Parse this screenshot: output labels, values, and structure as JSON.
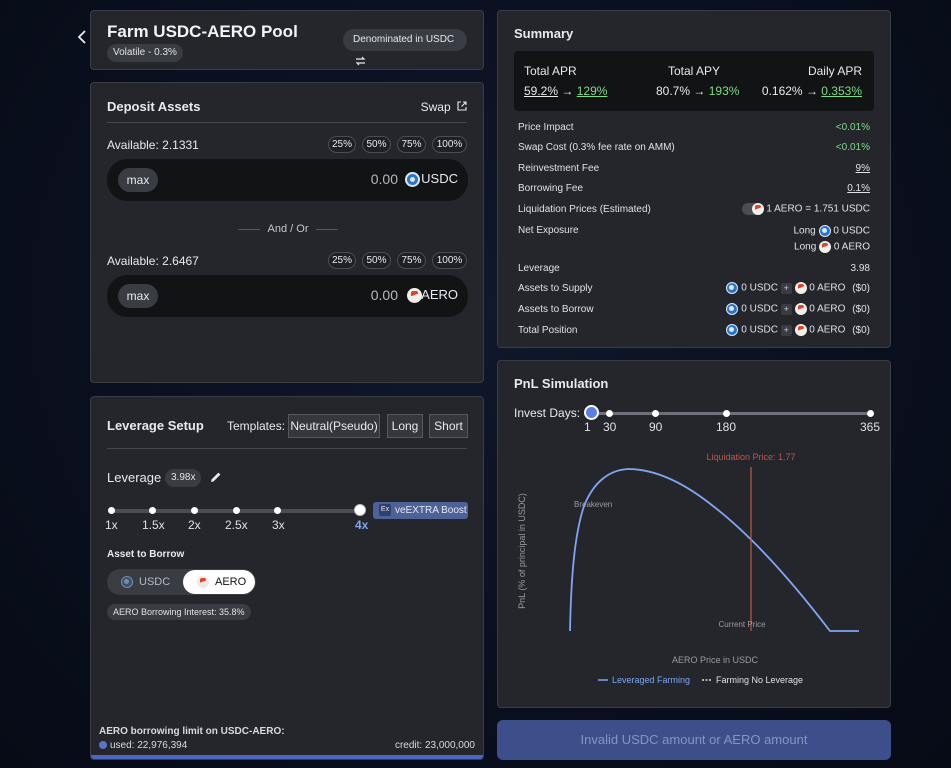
{
  "header": {
    "back_icon": "chevron-left-icon",
    "title": "Farm USDC-AERO Pool",
    "pool_type": "Volatile - 0.3%",
    "denomination": "Denominated in USDC",
    "swap_icon": "swap-arrows-icon"
  },
  "deposit": {
    "title": "Deposit Assets",
    "swap_label": "Swap",
    "token1": {
      "available": "Available: 2.1331",
      "max": "max",
      "amount": "0.00",
      "symbol": "USDC"
    },
    "separator": "And / Or",
    "token2": {
      "available": "Available: 2.6467",
      "max": "max",
      "amount": "0.00",
      "symbol": "AERO"
    },
    "percent_buttons": [
      "25%",
      "50%",
      "75%",
      "100%"
    ]
  },
  "leverage": {
    "title": "Leverage Setup",
    "templates_label": "Templates:",
    "templates": [
      "Neutral(Pseudo)",
      "Long",
      "Short"
    ],
    "leverage_label": "Leverage",
    "leverage_value": "3.98x",
    "slider_labels": [
      "1x",
      "1.5x",
      "2x",
      "2.5x",
      "3x",
      "4x"
    ],
    "slider_fraction": 1.0,
    "boost_label": "veEXTRA Boost",
    "boost_icon_text": "Ex",
    "asset_to_borrow_label": "Asset to Borrow",
    "borrow_options": [
      "USDC",
      "AERO"
    ],
    "selected_borrow": "AERO",
    "borrow_interest": "AERO Borrowing Interest: 35.8%",
    "limit_title": "AERO borrowing limit on USDC-AERO:",
    "used_label": "used: 22,976,394",
    "credit_label": "credit: 23,000,000",
    "usage_fraction": 0.999
  },
  "summary": {
    "title": "Summary",
    "total_apr_label": "Total APR",
    "total_apr_from": "59.2%",
    "total_apr_to": "129%",
    "total_apy_label": "Total APY",
    "total_apy_from": "80.7%",
    "total_apy_to": "193%",
    "daily_apr_label": "Daily APR",
    "daily_apr_from": "0.162%",
    "daily_apr_to": "0.353%",
    "arrow": "→",
    "rows": {
      "price_impact_label": "Price Impact",
      "price_impact_value": "<0.01%",
      "swap_cost_label": "Swap Cost (0.3% fee rate on AMM)",
      "swap_cost_value": "<0.01%",
      "reinvest_label": "Reinvestment Fee",
      "reinvest_value": "9%",
      "borrow_fee_label": "Borrowing Fee",
      "borrow_fee_value": "0.1%",
      "liq_label": "Liquidation Prices (Estimated)",
      "liq_value": "1 AERO = 1.751 USDC",
      "net_exposure_label": "Net Exposure",
      "long_label": "Long",
      "long_usdc_amount": "0",
      "long_usdc_symbol": "USDC",
      "long_aero_amount": "0",
      "long_aero_symbol": "AERO",
      "leverage_label": "Leverage",
      "leverage_value": "3.98",
      "supply_label": "Assets to Supply",
      "borrow_label": "Assets to Borrow",
      "total_label": "Total Position",
      "amount_zero": "0",
      "usdc": "USDC",
      "aero": "AERO",
      "plus": "+",
      "usd_value": "($0)"
    }
  },
  "pnl": {
    "title": "PnL Simulation",
    "invest_days_label": "Invest Days:",
    "days": [
      "1",
      "30",
      "90",
      "180",
      "365"
    ],
    "selected_day": "1",
    "liq_price_label": "Liquidation Price: 1.77",
    "breakeven_label": "Breakeven",
    "current_price_label": "Current Price",
    "x_label": "AERO Price in USDC",
    "y_label": "PnL (% of principal in USDC)",
    "legend_leveraged": "Leveraged Farming",
    "legend_no_leverage": "Farming No Leverage",
    "colors": {
      "leveraged": "#7fa6f0",
      "liquidation": "#c0574a",
      "no_leverage": "#ffffff"
    }
  },
  "action": {
    "button_label": "Invalid USDC amount or AERO amount"
  }
}
